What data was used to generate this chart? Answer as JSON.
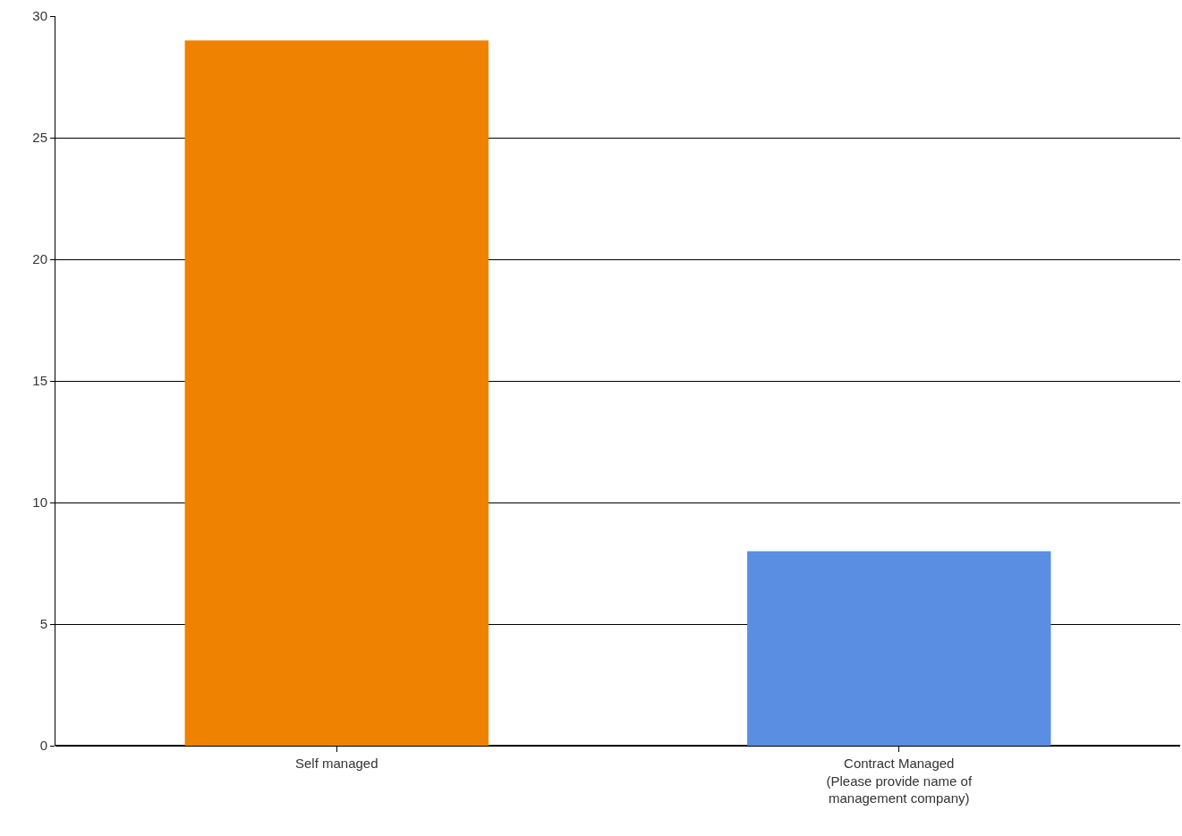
{
  "chart_data": {
    "type": "bar",
    "categories": [
      "Self managed",
      "Contract Managed\n(Please provide name of\nmanagement company)"
    ],
    "values": [
      29,
      8
    ],
    "colors": [
      "#ef8200",
      "#5a8ee2"
    ],
    "ylim": [
      0,
      30
    ],
    "yticks": [
      0,
      5,
      10,
      15,
      20,
      25,
      30
    ],
    "grid": "y"
  }
}
